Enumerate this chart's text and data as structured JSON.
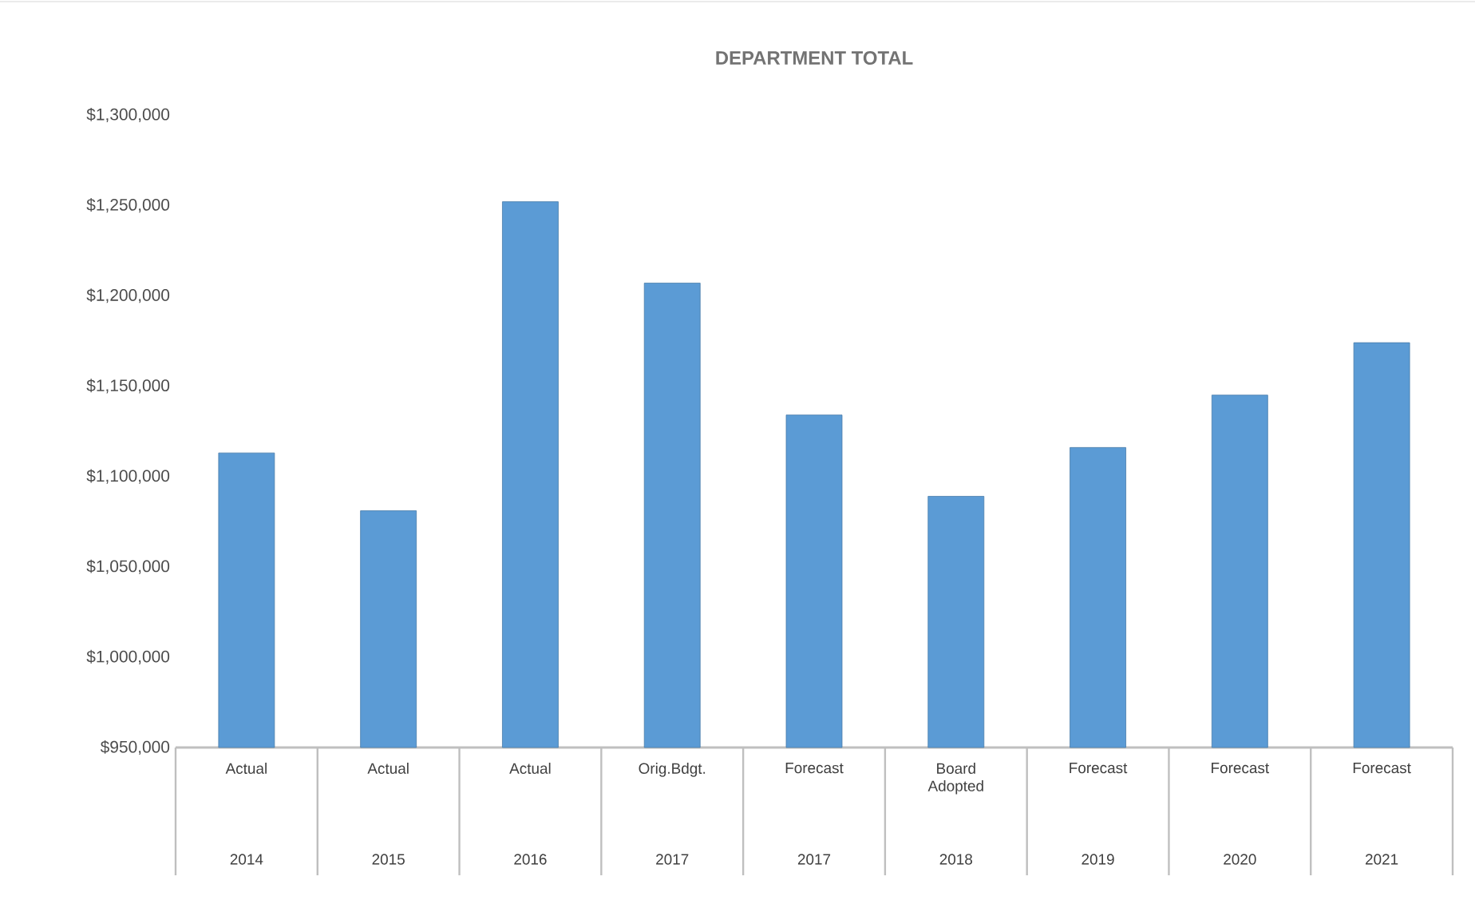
{
  "chart_data": {
    "type": "bar",
    "title": "DEPARTMENT TOTAL",
    "categories": [
      "Actual",
      "Actual",
      "Actual",
      "Orig.Bdgt.",
      "Forecast",
      "Board Adopted",
      "Forecast",
      "Forecast",
      "Forecast"
    ],
    "annotations": [
      "2014",
      "2015",
      "2016",
      "2017",
      "2017",
      "2018",
      "2019",
      "2020",
      "2021"
    ],
    "values": [
      1113000,
      1081000,
      1252000,
      1207000,
      1134000,
      1089000,
      1116000,
      1145000,
      1174000
    ],
    "color": "#5b9bd5",
    "ylim": [
      950000,
      1300000
    ],
    "yticks": [
      {
        "value": 950000,
        "label": "$950,000"
      },
      {
        "value": 1000000,
        "label": "$1,000,000"
      },
      {
        "value": 1050000,
        "label": "$1,050,000"
      },
      {
        "value": 1100000,
        "label": "$1,100,000"
      },
      {
        "value": 1150000,
        "label": "$1,150,000"
      },
      {
        "value": 1200000,
        "label": "$1,200,000"
      },
      {
        "value": 1250000,
        "label": "$1,250,000"
      },
      {
        "value": 1300000,
        "label": "$1,300,000"
      }
    ],
    "grid": false
  }
}
